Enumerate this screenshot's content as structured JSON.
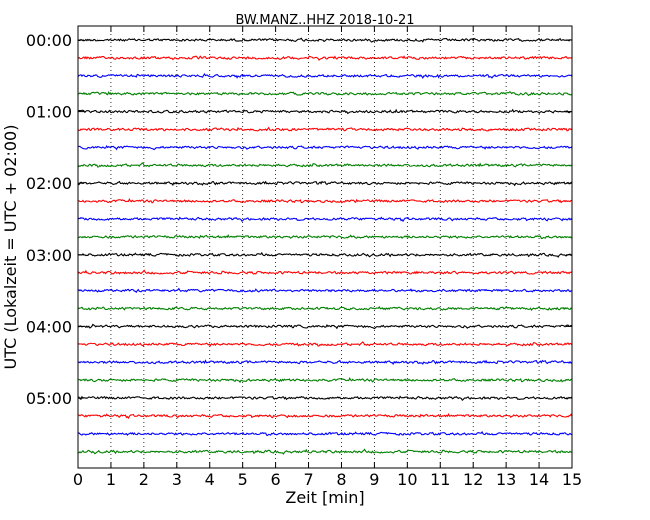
{
  "chart_data": {
    "type": "line",
    "title": "BW.MANZ..HHZ 2018-10-21",
    "xlabel": "Zeit  [min]",
    "ylabel": "UTC (Lokalzeit = UTC + 02:00)",
    "xlim": [
      0,
      15
    ],
    "x_ticks": [
      "0",
      "1",
      "2",
      "3",
      "4",
      "5",
      "6",
      "7",
      "8",
      "9",
      "10",
      "11",
      "12",
      "13",
      "14",
      "15"
    ],
    "y_tick_labels": [
      "00:00",
      "01:00",
      "02:00",
      "03:00",
      "04:00",
      "05:00"
    ],
    "rows_per_hour": 4,
    "row_start_times": [
      "00:00",
      "00:15",
      "00:30",
      "00:45",
      "01:00",
      "01:15",
      "01:30",
      "01:45",
      "02:00",
      "02:15",
      "02:30",
      "02:45",
      "03:00",
      "03:15",
      "03:30",
      "03:45",
      "04:00",
      "04:15",
      "04:30",
      "04:45",
      "05:00",
      "05:15",
      "05:30",
      "05:45"
    ],
    "series_colors": [
      "#000000",
      "#ff0000",
      "#0000ff",
      "#008000"
    ],
    "grid": "vertical dotted at each minute"
  }
}
